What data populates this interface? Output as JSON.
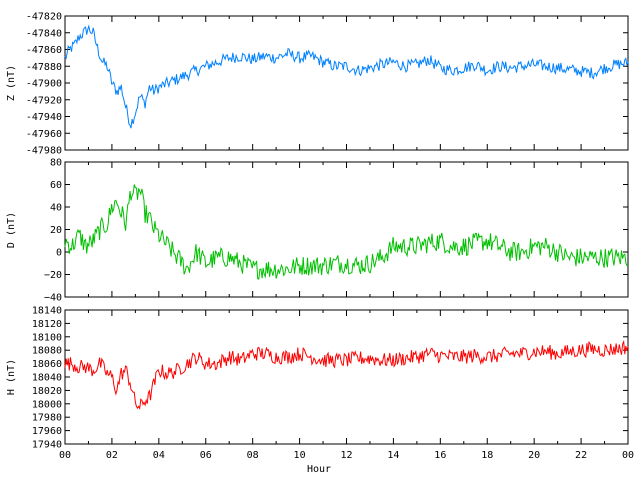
{
  "chart_data": {
    "type": "line",
    "x": {
      "label": "Hour",
      "range": [
        0,
        24
      ],
      "ticks": [
        "00",
        "02",
        "04",
        "06",
        "08",
        "10",
        "12",
        "14",
        "16",
        "18",
        "20",
        "22",
        "00"
      ],
      "tick_values": [
        0,
        2,
        4,
        6,
        8,
        10,
        12,
        14,
        16,
        18,
        20,
        22,
        24
      ],
      "minor_step": 1
    },
    "panels": [
      {
        "id": "z",
        "ylabel": "Z (nT)",
        "color": "#0080ff",
        "ylim": [
          -47980,
          -47820
        ],
        "yticks": [
          -47820,
          -47840,
          -47860,
          -47880,
          -47900,
          -47920,
          -47940,
          -47960,
          -47980
        ],
        "ytick_labels": [
          "-47820",
          "-47840",
          "-47860",
          "-47880",
          "-47900",
          "-47920",
          "-47940",
          "-47960",
          "-47980"
        ],
        "series": {
          "x": [
            0,
            0.2,
            0.4,
            0.6,
            0.8,
            1.0,
            1.2,
            1.4,
            1.6,
            1.8,
            2.0,
            2.2,
            2.4,
            2.6,
            2.8,
            3.0,
            3.2,
            3.4,
            3.6,
            3.8,
            4.0,
            4.4,
            4.8,
            5.2,
            5.6,
            6.0,
            6.5,
            7.0,
            7.5,
            8.0,
            8.5,
            9.0,
            9.5,
            10.0,
            10.5,
            11.0,
            11.5,
            12.0,
            12.5,
            13.0,
            13.5,
            14.0,
            14.5,
            15.0,
            15.5,
            16.0,
            16.5,
            17.0,
            17.5,
            18.0,
            18.5,
            19.0,
            19.5,
            20.0,
            20.5,
            21.0,
            21.5,
            22.0,
            22.5,
            23.0,
            23.5,
            24.0
          ],
          "y": [
            -47870,
            -47860,
            -47855,
            -47845,
            -47840,
            -47835,
            -47840,
            -47860,
            -47875,
            -47880,
            -47900,
            -47910,
            -47905,
            -47930,
            -47950,
            -47935,
            -47915,
            -47925,
            -47905,
            -47910,
            -47905,
            -47900,
            -47895,
            -47890,
            -47885,
            -47880,
            -47875,
            -47870,
            -47868,
            -47872,
            -47868,
            -47870,
            -47865,
            -47870,
            -47868,
            -47875,
            -47880,
            -47880,
            -47885,
            -47882,
            -47878,
            -47875,
            -47880,
            -47878,
            -47872,
            -47882,
            -47885,
            -47882,
            -47878,
            -47885,
            -47880,
            -47882,
            -47880,
            -47878,
            -47880,
            -47882,
            -47884,
            -47886,
            -47888,
            -47882,
            -47878,
            -47876
          ],
          "noise": 7
        }
      },
      {
        "id": "d",
        "ylabel": "D (nT)",
        "color": "#00c000",
        "ylim": [
          -40,
          80
        ],
        "yticks": [
          80,
          60,
          40,
          20,
          0,
          -20,
          -40
        ],
        "ytick_labels": [
          "80",
          "60",
          "40",
          "20",
          "0",
          "−20",
          "−40"
        ],
        "series": {
          "x": [
            0,
            0.3,
            0.6,
            0.9,
            1.2,
            1.5,
            1.8,
            2.0,
            2.2,
            2.4,
            2.6,
            2.8,
            3.0,
            3.2,
            3.4,
            3.6,
            3.8,
            4.0,
            4.4,
            4.8,
            5.2,
            5.6,
            6.0,
            6.5,
            7.0,
            7.5,
            8.0,
            8.5,
            9.0,
            9.5,
            10.0,
            10.5,
            11.0,
            11.5,
            12.0,
            12.5,
            13.0,
            13.5,
            14.0,
            14.5,
            15.0,
            15.5,
            16.0,
            16.5,
            17.0,
            17.5,
            18.0,
            18.5,
            19.0,
            19.5,
            20.0,
            20.5,
            21.0,
            21.5,
            22.0,
            22.5,
            23.0,
            23.5,
            24.0
          ],
          "y": [
            10,
            5,
            15,
            5,
            10,
            20,
            25,
            40,
            45,
            35,
            25,
            55,
            50,
            55,
            35,
            30,
            20,
            15,
            5,
            -5,
            -15,
            0,
            -10,
            -5,
            -5,
            -10,
            -15,
            -15,
            -15,
            -15,
            -12,
            -12,
            -12,
            -10,
            -10,
            -12,
            -10,
            -5,
            5,
            5,
            5,
            8,
            10,
            5,
            5,
            8,
            10,
            5,
            0,
            0,
            5,
            5,
            0,
            -5,
            -5,
            -5,
            -5,
            -5,
            -5
          ],
          "noise": 9
        }
      },
      {
        "id": "h",
        "ylabel": "H (nT)",
        "color": "#ff0000",
        "ylim": [
          17940,
          18140
        ],
        "yticks": [
          18140,
          18120,
          18100,
          18080,
          18060,
          18040,
          18020,
          18000,
          17980,
          17960,
          17940
        ],
        "ytick_labels": [
          "18140",
          "18120",
          "18100",
          "18080",
          "18060",
          "18040",
          "18020",
          "18000",
          "17980",
          "17960",
          "17940"
        ],
        "series": {
          "x": [
            0,
            0.3,
            0.6,
            0.9,
            1.2,
            1.5,
            1.8,
            2.0,
            2.2,
            2.4,
            2.6,
            2.8,
            3.0,
            3.2,
            3.4,
            3.6,
            3.8,
            4.0,
            4.4,
            4.8,
            5.2,
            5.6,
            6.0,
            6.5,
            7.0,
            7.5,
            8.0,
            8.5,
            9.0,
            9.5,
            10.0,
            10.5,
            11.0,
            11.5,
            12.0,
            12.5,
            13.0,
            13.5,
            14.0,
            14.5,
            15.0,
            15.5,
            16.0,
            16.5,
            17.0,
            17.5,
            18.0,
            18.5,
            19.0,
            19.5,
            20.0,
            20.5,
            21.0,
            21.5,
            22.0,
            22.5,
            23.0,
            23.5,
            24.0
          ],
          "y": [
            18060,
            18060,
            18055,
            18055,
            18050,
            18060,
            18045,
            18040,
            18020,
            18045,
            18050,
            18030,
            18000,
            17995,
            18005,
            18010,
            18030,
            18050,
            18045,
            18050,
            18060,
            18070,
            18060,
            18060,
            18070,
            18065,
            18075,
            18075,
            18070,
            18070,
            18075,
            18070,
            18065,
            18065,
            18065,
            18068,
            18068,
            18065,
            18065,
            18068,
            18070,
            18075,
            18072,
            18070,
            18070,
            18072,
            18070,
            18072,
            18075,
            18075,
            18078,
            18078,
            18075,
            18078,
            18080,
            18082,
            18080,
            18082,
            18085
          ],
          "noise": 11
        }
      }
    ]
  }
}
